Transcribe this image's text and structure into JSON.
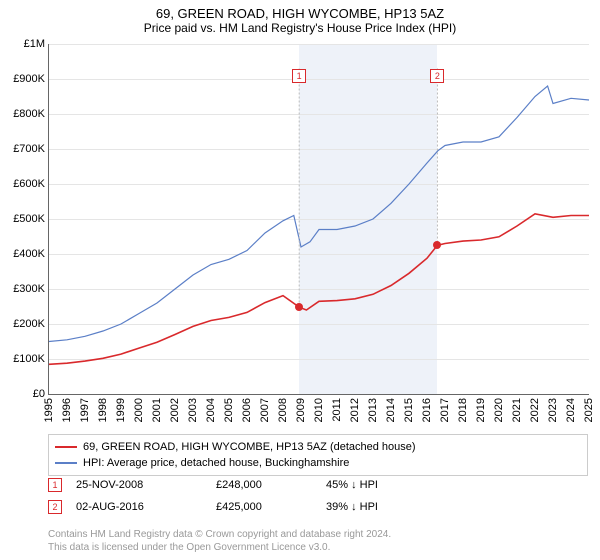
{
  "title": "69, GREEN ROAD, HIGH WYCOMBE, HP13 5AZ",
  "subtitle": "Price paid vs. HM Land Registry's House Price Index (HPI)",
  "chart": {
    "type": "line",
    "background_color": "#ffffff",
    "grid_color": "#e5e5e5",
    "shaded_band_color": "#eef2f9",
    "shaded_band": {
      "x_start": 2008.9,
      "x_end": 2016.58
    },
    "xlim": [
      1995,
      2025
    ],
    "ylim": [
      0,
      1000000
    ],
    "ytick_step": 100000,
    "ytick_prefix": "£",
    "ytick_labels": [
      "£0",
      "£100K",
      "£200K",
      "£300K",
      "£400K",
      "£500K",
      "£600K",
      "£700K",
      "£800K",
      "£900K",
      "£1M"
    ],
    "xticks": [
      1995,
      1996,
      1997,
      1998,
      1999,
      2000,
      2001,
      2002,
      2003,
      2004,
      2005,
      2006,
      2007,
      2008,
      2009,
      2010,
      2011,
      2012,
      2013,
      2014,
      2015,
      2016,
      2017,
      2018,
      2019,
      2020,
      2021,
      2022,
      2023,
      2024,
      2025
    ],
    "series": [
      {
        "name": "hpi",
        "label": "HPI: Average price, detached house, Buckinghamshire",
        "color": "#5b7fc7",
        "line_width": 1.2,
        "points": [
          [
            1995,
            150000
          ],
          [
            1996,
            155000
          ],
          [
            1997,
            165000
          ],
          [
            1998,
            180000
          ],
          [
            1999,
            200000
          ],
          [
            2000,
            230000
          ],
          [
            2001,
            260000
          ],
          [
            2002,
            300000
          ],
          [
            2003,
            340000
          ],
          [
            2004,
            370000
          ],
          [
            2005,
            385000
          ],
          [
            2006,
            410000
          ],
          [
            2007,
            460000
          ],
          [
            2008,
            495000
          ],
          [
            2008.6,
            510000
          ],
          [
            2009,
            420000
          ],
          [
            2009.5,
            435000
          ],
          [
            2010,
            470000
          ],
          [
            2011,
            470000
          ],
          [
            2012,
            480000
          ],
          [
            2013,
            500000
          ],
          [
            2014,
            545000
          ],
          [
            2015,
            600000
          ],
          [
            2016,
            660000
          ],
          [
            2016.6,
            695000
          ],
          [
            2017,
            710000
          ],
          [
            2018,
            720000
          ],
          [
            2019,
            720000
          ],
          [
            2020,
            735000
          ],
          [
            2021,
            790000
          ],
          [
            2022,
            850000
          ],
          [
            2022.7,
            880000
          ],
          [
            2023,
            830000
          ],
          [
            2024,
            845000
          ],
          [
            2025,
            840000
          ]
        ]
      },
      {
        "name": "price-paid",
        "label": "69, GREEN ROAD, HIGH WYCOMBE, HP13 5AZ (detached house)",
        "color": "#d9292c",
        "line_width": 1.6,
        "points": [
          [
            1995,
            85000
          ],
          [
            1996,
            88000
          ],
          [
            1997,
            94000
          ],
          [
            1998,
            102000
          ],
          [
            1999,
            114000
          ],
          [
            2000,
            131000
          ],
          [
            2001,
            148000
          ],
          [
            2002,
            170000
          ],
          [
            2003,
            193000
          ],
          [
            2004,
            210000
          ],
          [
            2005,
            219000
          ],
          [
            2006,
            233000
          ],
          [
            2007,
            261000
          ],
          [
            2008,
            281000
          ],
          [
            2008.9,
            248000
          ],
          [
            2009.3,
            240000
          ],
          [
            2010,
            265000
          ],
          [
            2011,
            267000
          ],
          [
            2012,
            272000
          ],
          [
            2013,
            285000
          ],
          [
            2014,
            310000
          ],
          [
            2015,
            345000
          ],
          [
            2016,
            388000
          ],
          [
            2016.58,
            425000
          ],
          [
            2017,
            430000
          ],
          [
            2018,
            437000
          ],
          [
            2019,
            440000
          ],
          [
            2020,
            449000
          ],
          [
            2021,
            480000
          ],
          [
            2022,
            515000
          ],
          [
            2023,
            505000
          ],
          [
            2024,
            510000
          ],
          [
            2025,
            510000
          ]
        ]
      }
    ],
    "sale_markers": [
      {
        "n": "1",
        "x": 2008.9,
        "y": 248000,
        "color": "#d9292c"
      },
      {
        "n": "2",
        "x": 2016.58,
        "y": 425000,
        "color": "#d9292c"
      }
    ],
    "marker_flags": [
      {
        "n": "1",
        "x": 2008.9,
        "top_y": 930000,
        "color": "#d9292c"
      },
      {
        "n": "2",
        "x": 2016.58,
        "top_y": 930000,
        "color": "#d9292c"
      }
    ]
  },
  "legend_series": [
    {
      "color": "#d9292c",
      "label": "69, GREEN ROAD, HIGH WYCOMBE, HP13 5AZ (detached house)"
    },
    {
      "color": "#5b7fc7",
      "label": "HPI: Average price, detached house, Buckinghamshire"
    }
  ],
  "sales": [
    {
      "marker": "1",
      "marker_color": "#d9292c",
      "date": "25-NOV-2008",
      "price": "£248,000",
      "pct": "45% ↓ HPI"
    },
    {
      "marker": "2",
      "marker_color": "#d9292c",
      "date": "02-AUG-2016",
      "price": "£425,000",
      "pct": "39% ↓ HPI"
    }
  ],
  "footer_line1": "Contains HM Land Registry data © Crown copyright and database right 2024.",
  "footer_line2": "This data is licensed under the Open Government Licence v3.0."
}
